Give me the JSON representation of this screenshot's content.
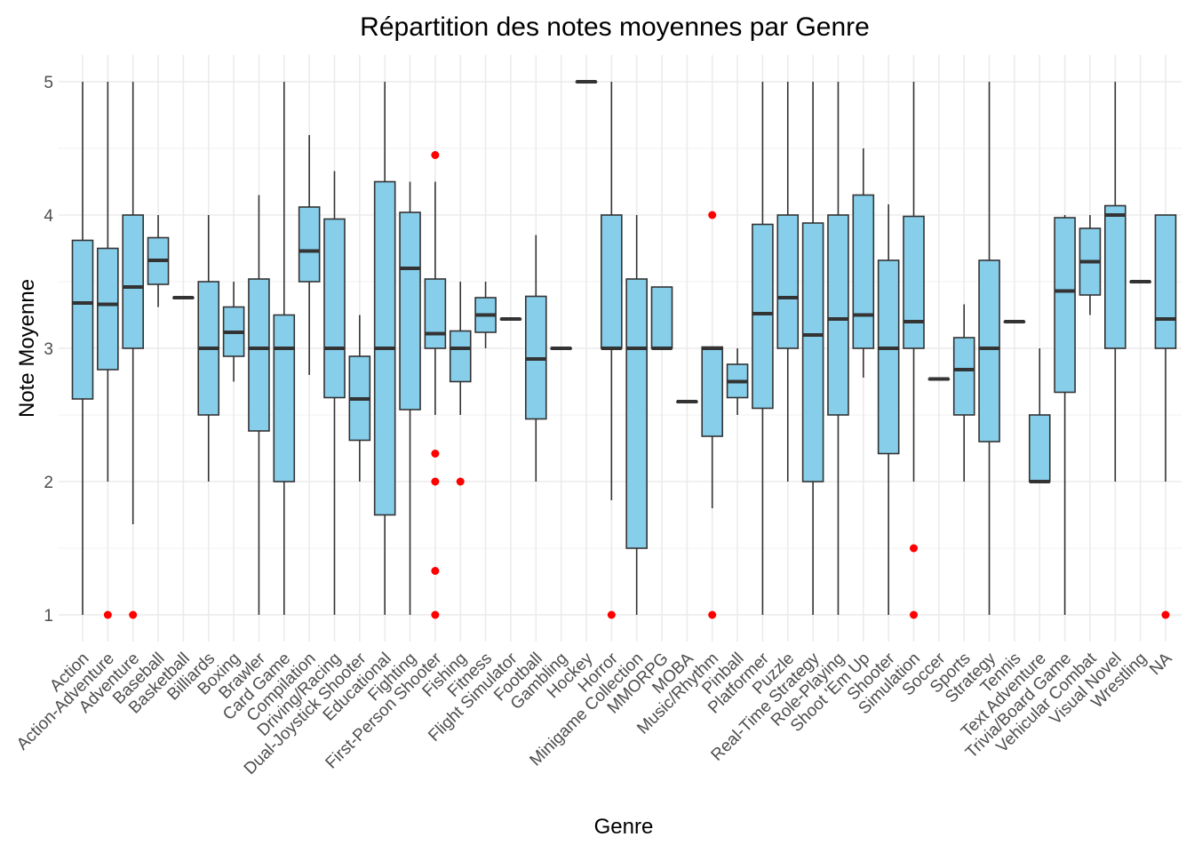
{
  "chart_data": {
    "type": "boxplot",
    "title": "Répartition des notes moyennes par Genre",
    "xlabel": "Genre",
    "ylabel": "Note Moyenne",
    "ylim": [
      0.8,
      5.2
    ],
    "yticks": [
      1,
      2,
      3,
      4,
      5
    ],
    "grid": true,
    "legend": "none",
    "colors": {
      "box_fill": "#87CEEB",
      "box_stroke": "#333333",
      "median": "#333333",
      "outlier": "#FF0000",
      "grid": "#ebebeb"
    },
    "categories": [
      "Action",
      "Action-Adventure",
      "Adventure",
      "Baseball",
      "Basketball",
      "Billiards",
      "Boxing",
      "Brawler",
      "Card Game",
      "Compilation",
      "Driving/Racing",
      "Dual-Joystick Shooter",
      "Educational",
      "Fighting",
      "First-Person Shooter",
      "Fishing",
      "Fitness",
      "Flight Simulator",
      "Football",
      "Gambling",
      "Hockey",
      "Horror",
      "Minigame Collection",
      "MMORPG",
      "MOBA",
      "Music/Rhythm",
      "Pinball",
      "Platformer",
      "Puzzle",
      "Real-Time Strategy",
      "Role-Playing",
      "Shoot 'Em Up",
      "Shooter",
      "Simulation",
      "Soccer",
      "Sports",
      "Strategy",
      "Tennis",
      "Text Adventure",
      "Trivia/Board Game",
      "Vehicular Combat",
      "Visual Novel",
      "Wrestling",
      "NA"
    ],
    "boxes": [
      {
        "min": 1,
        "q1": 2.62,
        "median": 3.34,
        "q3": 3.81,
        "max": 5,
        "outliers": []
      },
      {
        "min": 2,
        "q1": 2.84,
        "median": 3.33,
        "q3": 3.75,
        "max": 5,
        "outliers": [
          1
        ]
      },
      {
        "min": 1.68,
        "q1": 3,
        "median": 3.46,
        "q3": 4,
        "max": 5,
        "outliers": [
          1
        ]
      },
      {
        "min": 3.31,
        "q1": 3.48,
        "median": 3.66,
        "q3": 3.83,
        "max": 4,
        "outliers": []
      },
      {
        "min": 3.38,
        "q1": 3.38,
        "median": 3.38,
        "q3": 3.38,
        "max": 3.38,
        "outliers": []
      },
      {
        "min": 2,
        "q1": 2.5,
        "median": 3,
        "q3": 3.5,
        "max": 4,
        "outliers": []
      },
      {
        "min": 2.75,
        "q1": 2.94,
        "median": 3.12,
        "q3": 3.31,
        "max": 3.5,
        "outliers": []
      },
      {
        "min": 1,
        "q1": 2.38,
        "median": 3,
        "q3": 3.52,
        "max": 4.15,
        "outliers": []
      },
      {
        "min": 1,
        "q1": 2,
        "median": 3,
        "q3": 3.25,
        "max": 5,
        "outliers": []
      },
      {
        "min": 2.8,
        "q1": 3.5,
        "median": 3.73,
        "q3": 4.06,
        "max": 4.6,
        "outliers": []
      },
      {
        "min": 1,
        "q1": 2.63,
        "median": 3,
        "q3": 3.97,
        "max": 4.33,
        "outliers": []
      },
      {
        "min": 2,
        "q1": 2.31,
        "median": 2.62,
        "q3": 2.94,
        "max": 3.25,
        "outliers": []
      },
      {
        "min": 1,
        "q1": 1.75,
        "median": 3,
        "q3": 4.25,
        "max": 5,
        "outliers": []
      },
      {
        "min": 1,
        "q1": 2.54,
        "median": 3.6,
        "q3": 4.02,
        "max": 4.25,
        "outliers": []
      },
      {
        "min": 2.5,
        "q1": 3,
        "median": 3.11,
        "q3": 3.52,
        "max": 4.25,
        "outliers": [
          4.45,
          2.21,
          2,
          1.33,
          1
        ]
      },
      {
        "min": 2.5,
        "q1": 2.75,
        "median": 3,
        "q3": 3.13,
        "max": 3.5,
        "outliers": [
          2
        ]
      },
      {
        "min": 3,
        "q1": 3.12,
        "median": 3.25,
        "q3": 3.38,
        "max": 3.5,
        "outliers": []
      },
      {
        "min": 3.22,
        "q1": 3.22,
        "median": 3.22,
        "q3": 3.22,
        "max": 3.22,
        "outliers": []
      },
      {
        "min": 2,
        "q1": 2.47,
        "median": 2.92,
        "q3": 3.39,
        "max": 3.85,
        "outliers": []
      },
      {
        "min": 3,
        "q1": 3,
        "median": 3,
        "q3": 3,
        "max": 3,
        "outliers": []
      },
      {
        "min": 5,
        "q1": 5,
        "median": 5,
        "q3": 5,
        "max": 5,
        "outliers": []
      },
      {
        "min": 1.86,
        "q1": 3,
        "median": 3,
        "q3": 4,
        "max": 5,
        "outliers": [
          1
        ]
      },
      {
        "min": 1,
        "q1": 1.5,
        "median": 3,
        "q3": 3.52,
        "max": 4,
        "outliers": []
      },
      {
        "min": 3,
        "q1": 3,
        "median": 3,
        "q3": 3.46,
        "max": 3.46,
        "outliers": []
      },
      {
        "min": 2.6,
        "q1": 2.6,
        "median": 2.6,
        "q3": 2.6,
        "max": 2.6,
        "outliers": []
      },
      {
        "min": 1.8,
        "q1": 2.34,
        "median": 3,
        "q3": 3.01,
        "max": 3.01,
        "outliers": [
          4,
          1
        ]
      },
      {
        "min": 2.5,
        "q1": 2.63,
        "median": 2.75,
        "q3": 2.88,
        "max": 3,
        "outliers": []
      },
      {
        "min": 1,
        "q1": 2.55,
        "median": 3.26,
        "q3": 3.93,
        "max": 5,
        "outliers": []
      },
      {
        "min": 2,
        "q1": 3,
        "median": 3.38,
        "q3": 4,
        "max": 5,
        "outliers": []
      },
      {
        "min": 1,
        "q1": 2,
        "median": 3.1,
        "q3": 3.94,
        "max": 5,
        "outliers": []
      },
      {
        "min": 1,
        "q1": 2.5,
        "median": 3.22,
        "q3": 4,
        "max": 5,
        "outliers": []
      },
      {
        "min": 2.78,
        "q1": 3,
        "median": 3.25,
        "q3": 4.15,
        "max": 4.5,
        "outliers": []
      },
      {
        "min": 1,
        "q1": 2.21,
        "median": 3,
        "q3": 3.66,
        "max": 4.08,
        "outliers": []
      },
      {
        "min": 2,
        "q1": 3,
        "median": 3.2,
        "q3": 3.99,
        "max": 5,
        "outliers": [
          1.5,
          1
        ]
      },
      {
        "min": 2.77,
        "q1": 2.77,
        "median": 2.77,
        "q3": 2.77,
        "max": 2.77,
        "outliers": []
      },
      {
        "min": 2,
        "q1": 2.5,
        "median": 2.84,
        "q3": 3.08,
        "max": 3.33,
        "outliers": []
      },
      {
        "min": 1,
        "q1": 2.3,
        "median": 3,
        "q3": 3.66,
        "max": 5,
        "outliers": []
      },
      {
        "min": 3.2,
        "q1": 3.2,
        "median": 3.2,
        "q3": 3.2,
        "max": 3.2,
        "outliers": []
      },
      {
        "min": 2,
        "q1": 2,
        "median": 2,
        "q3": 2.5,
        "max": 3,
        "outliers": []
      },
      {
        "min": 1,
        "q1": 2.67,
        "median": 3.43,
        "q3": 3.98,
        "max": 4,
        "outliers": []
      },
      {
        "min": 3.25,
        "q1": 3.4,
        "median": 3.65,
        "q3": 3.9,
        "max": 4,
        "outliers": []
      },
      {
        "min": 2,
        "q1": 3,
        "median": 4,
        "q3": 4.07,
        "max": 5,
        "outliers": []
      },
      {
        "min": 3.5,
        "q1": 3.5,
        "median": 3.5,
        "q3": 3.5,
        "max": 3.5,
        "outliers": []
      },
      {
        "min": 2,
        "q1": 3,
        "median": 3.22,
        "q3": 4,
        "max": 4,
        "outliers": [
          1
        ]
      }
    ]
  }
}
